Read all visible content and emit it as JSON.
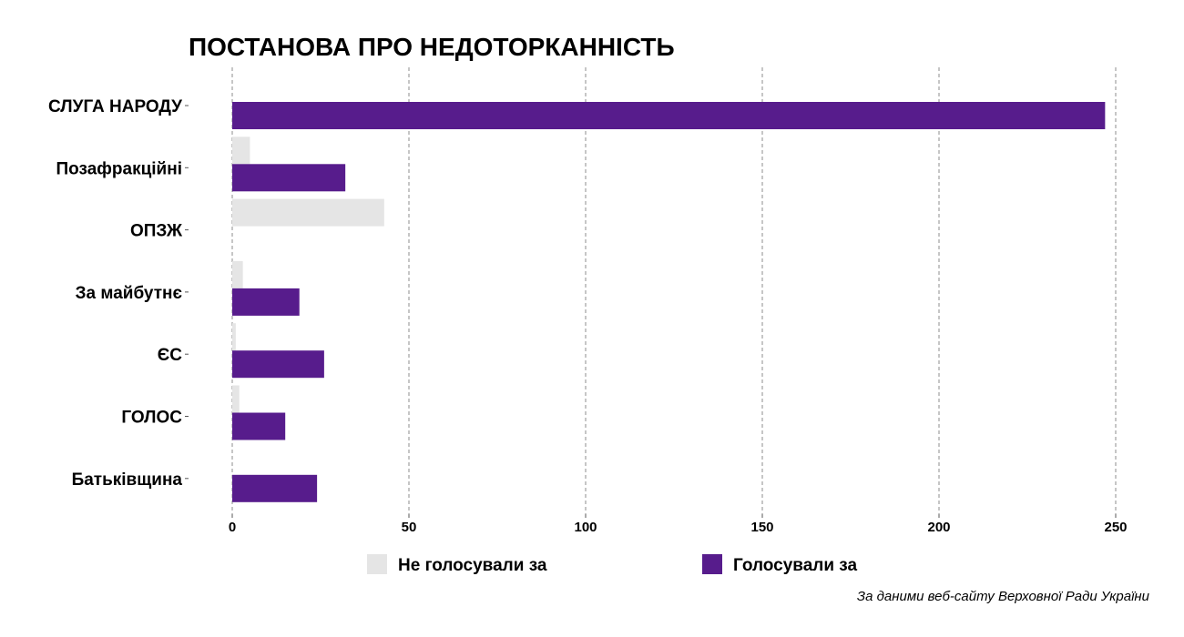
{
  "chart_data": {
    "type": "bar",
    "orientation": "horizontal",
    "title": "ПОСТАНОВА ПРО НЕДОТОРКАННІСТЬ",
    "caption": "За даними веб-сайту Верховної Ради України",
    "categories": [
      "СЛУГА НАРОДУ",
      "Позафракційні",
      "ОПЗЖ",
      "За майбутнє",
      "ЄС",
      "ГОЛОС",
      "Батьківщина"
    ],
    "series": [
      {
        "name": "Не голосували за",
        "color": "#e5e5e5",
        "values": [
          0,
          5,
          43,
          3,
          1,
          2,
          0
        ]
      },
      {
        "name": "Голосували за",
        "color": "#571c8c",
        "values": [
          247,
          32,
          0,
          19,
          26,
          15,
          24
        ]
      }
    ],
    "xlim": [
      0,
      260
    ],
    "xticks": [
      0,
      50,
      100,
      150,
      200,
      250
    ],
    "grid": true,
    "legend_position": "bottom"
  }
}
